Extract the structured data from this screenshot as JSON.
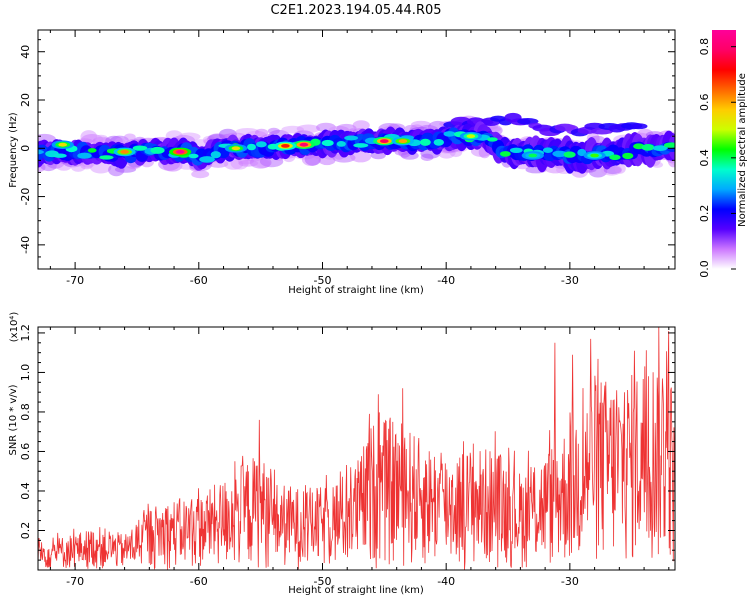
{
  "title": "C2E1.2023.194.05.44.R05",
  "chart_data": [
    {
      "type": "heatmap",
      "xlabel": "Height of straight line (km)",
      "ylabel": "Frequency (Hz)",
      "xlim": [
        -73,
        -21.5
      ],
      "ylim": [
        -50,
        49
      ],
      "xticks": [
        -70,
        -60,
        -50,
        -40,
        -30
      ],
      "xtick_labels": [
        "-70",
        "-60",
        "-50",
        "-40",
        "-30"
      ],
      "yticks": [
        40,
        20,
        0,
        -20,
        -40
      ],
      "ytick_labels": [
        "40",
        "20",
        "0",
        "-20",
        "-40"
      ],
      "colorbar": {
        "label": "Normalized spectral amplitude",
        "range": [
          0,
          0.86
        ],
        "ticks": [
          0.0,
          0.2,
          0.4,
          0.6,
          0.8
        ],
        "tick_labels": [
          "0.0",
          "0.2",
          "0.4",
          "0.6",
          "0.8"
        ],
        "colormap": [
          "#ffffff",
          "#cc77ff",
          "#5500ff",
          "#0000ff",
          "#00aaff",
          "#00ffcc",
          "#00ff00",
          "#ccff00",
          "#ffcc00",
          "#ff6600",
          "#ff0000",
          "#ff0066",
          "#ff0099"
        ]
      },
      "centerline": [
        {
          "x": -73,
          "y": -2
        },
        {
          "x": -70,
          "y": -1.5
        },
        {
          "x": -67,
          "y": -2.5
        },
        {
          "x": -64,
          "y": -1.5
        },
        {
          "x": -61,
          "y": -1.5
        },
        {
          "x": -60,
          "y": -4
        },
        {
          "x": -58,
          "y": 0
        },
        {
          "x": -55,
          "y": 0
        },
        {
          "x": -52,
          "y": 1
        },
        {
          "x": -49,
          "y": 2
        },
        {
          "x": -46,
          "y": 3
        },
        {
          "x": -43,
          "y": 3
        },
        {
          "x": -41,
          "y": 3
        },
        {
          "x": -39,
          "y": 5
        },
        {
          "x": -37,
          "y": 5
        },
        {
          "x": -35,
          "y": -2
        },
        {
          "x": -32,
          "y": -2
        },
        {
          "x": -29,
          "y": -3
        },
        {
          "x": -26,
          "y": -2
        },
        {
          "x": -23,
          "y": 0
        },
        {
          "x": -21.5,
          "y": 1
        }
      ],
      "hotspots": [
        {
          "x": -61.5,
          "y": -1.5,
          "level": 0.86
        },
        {
          "x": -45,
          "y": 3,
          "level": 0.78
        },
        {
          "x": -51.5,
          "y": 1.5,
          "level": 0.8
        },
        {
          "x": -53,
          "y": 1,
          "level": 0.7
        },
        {
          "x": -66,
          "y": -1.5,
          "level": 0.62
        },
        {
          "x": -71,
          "y": 1.5,
          "level": 0.55
        },
        {
          "x": -43.5,
          "y": 3,
          "level": 0.6
        },
        {
          "x": -57,
          "y": 0,
          "level": 0.55
        },
        {
          "x": -38,
          "y": 5,
          "level": 0.5
        },
        {
          "x": -28,
          "y": -3,
          "level": 0.45
        },
        {
          "x": -33,
          "y": -3,
          "level": 0.4
        }
      ],
      "upper_branch": [
        {
          "x": -40,
          "y": 8
        },
        {
          "x": -37,
          "y": 12
        },
        {
          "x": -35,
          "y": 12
        },
        {
          "x": -32,
          "y": 8
        },
        {
          "x": -29,
          "y": 8
        },
        {
          "x": -26,
          "y": 9
        },
        {
          "x": -24,
          "y": 10
        }
      ]
    },
    {
      "type": "line",
      "xlabel": "Height of straight line (km)",
      "ylabel": "SNR (10 * v/v)",
      "y_multiplier": "(x10⁴)",
      "xlim": [
        -73,
        -21.5
      ],
      "ylim": [
        0,
        1.23
      ],
      "xticks": [
        -70,
        -60,
        -50,
        -40,
        -30
      ],
      "xtick_labels": [
        "-70",
        "-60",
        "-50",
        "-40",
        "-30"
      ],
      "yticks": [
        0.2,
        0.4,
        0.6,
        0.8,
        1.0,
        1.2
      ],
      "ytick_labels": [
        "0.2",
        "0.4",
        "0.6",
        "0.8",
        "1.0",
        "1.2"
      ],
      "color": "#ee3333",
      "envelope": [
        {
          "x": -73,
          "y": 0.14
        },
        {
          "x": -68,
          "y": 0.22
        },
        {
          "x": -66,
          "y": 0.18
        },
        {
          "x": -64,
          "y": 0.32
        },
        {
          "x": -62,
          "y": 0.36
        },
        {
          "x": -60,
          "y": 0.38
        },
        {
          "x": -58,
          "y": 0.46
        },
        {
          "x": -57,
          "y": 0.52
        },
        {
          "x": -55,
          "y": 0.6
        },
        {
          "x": -54,
          "y": 0.45
        },
        {
          "x": -52,
          "y": 0.42
        },
        {
          "x": -50,
          "y": 0.42
        },
        {
          "x": -48,
          "y": 0.5
        },
        {
          "x": -47,
          "y": 0.58
        },
        {
          "x": -46,
          "y": 0.75
        },
        {
          "x": -44,
          "y": 0.78
        },
        {
          "x": -42,
          "y": 0.66
        },
        {
          "x": -40,
          "y": 0.6
        },
        {
          "x": -38,
          "y": 0.62
        },
        {
          "x": -36,
          "y": 0.62
        },
        {
          "x": -34,
          "y": 0.5
        },
        {
          "x": -32,
          "y": 0.6
        },
        {
          "x": -30,
          "y": 0.75
        },
        {
          "x": -28,
          "y": 1.0
        },
        {
          "x": -26,
          "y": 0.95
        },
        {
          "x": -24,
          "y": 1.05
        },
        {
          "x": -22,
          "y": 1.15
        },
        {
          "x": -21.5,
          "y": 0.7
        }
      ],
      "peaks": [
        {
          "x": -55.1,
          "y": 0.76
        },
        {
          "x": -57.1,
          "y": 0.55
        },
        {
          "x": -45.5,
          "y": 0.89
        },
        {
          "x": -43.5,
          "y": 0.92
        },
        {
          "x": -46.2,
          "y": 0.79
        },
        {
          "x": -37.8,
          "y": 0.64
        },
        {
          "x": -31.2,
          "y": 1.15
        },
        {
          "x": -29.8,
          "y": 1.09
        },
        {
          "x": -28.3,
          "y": 1.17
        },
        {
          "x": -26.2,
          "y": 0.91
        },
        {
          "x": -24.8,
          "y": 1.11
        },
        {
          "x": -22.8,
          "y": 1.23
        },
        {
          "x": -22.0,
          "y": 1.21
        }
      ]
    }
  ]
}
